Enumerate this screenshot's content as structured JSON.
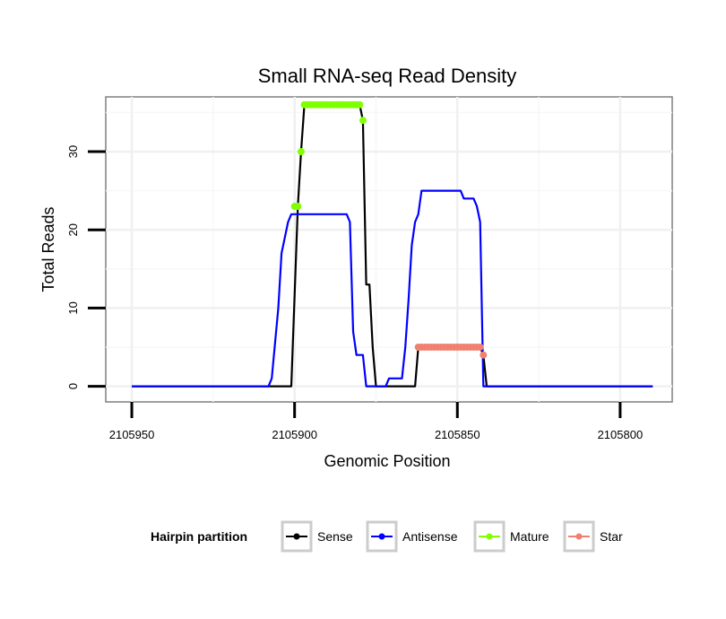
{
  "chart_data": {
    "type": "line",
    "title": "Small RNA-seq Read Density",
    "xlabel": "Genomic Position",
    "ylabel": "Total Reads",
    "x_reversed": true,
    "xlim": [
      2105958,
      2105784
    ],
    "ylim": [
      -2,
      37
    ],
    "xticks": [
      2105950,
      2105900,
      2105850,
      2105800
    ],
    "xtick_labels": [
      "2105950",
      "2105900",
      "2105850",
      "2105800"
    ],
    "yticks": [
      0,
      10,
      20,
      30
    ],
    "ytick_labels": [
      "0",
      "10",
      "20",
      "30"
    ],
    "grid": true,
    "legend": {
      "title": "Hairpin partition",
      "position": "bottom",
      "entries": [
        {
          "name": "Sense",
          "color": "#000000"
        },
        {
          "name": "Antisense",
          "color": "#0000ff"
        },
        {
          "name": "Mature",
          "color": "#7fff00"
        },
        {
          "name": "Star",
          "color": "#f08070"
        }
      ]
    },
    "series": [
      {
        "name": "Sense",
        "color": "#000000",
        "style": "line",
        "points": [
          [
            2105950,
            0
          ],
          [
            2105901,
            0
          ],
          [
            2105899,
            23
          ],
          [
            2105898,
            30
          ],
          [
            2105897,
            36
          ],
          [
            2105880,
            36
          ],
          [
            2105879,
            34
          ],
          [
            2105878,
            13
          ],
          [
            2105877,
            13
          ],
          [
            2105876,
            5
          ],
          [
            2105875,
            0
          ],
          [
            2105863,
            0
          ],
          [
            2105862,
            5
          ],
          [
            2105843,
            5
          ],
          [
            2105842,
            4
          ],
          [
            2105841,
            0
          ],
          [
            2105790,
            0
          ]
        ]
      },
      {
        "name": "Antisense",
        "color": "#0000ff",
        "style": "line",
        "points": [
          [
            2105950,
            0
          ],
          [
            2105908,
            0
          ],
          [
            2105907,
            1
          ],
          [
            2105905,
            10
          ],
          [
            2105904,
            17
          ],
          [
            2105902,
            21
          ],
          [
            2105901,
            22
          ],
          [
            2105884,
            22
          ],
          [
            2105883,
            21
          ],
          [
            2105882,
            7
          ],
          [
            2105881,
            4
          ],
          [
            2105879,
            4
          ],
          [
            2105878,
            0
          ],
          [
            2105872,
            0
          ],
          [
            2105871,
            1
          ],
          [
            2105867,
            1
          ],
          [
            2105866,
            5
          ],
          [
            2105865,
            11
          ],
          [
            2105864,
            18
          ],
          [
            2105863,
            21
          ],
          [
            2105862,
            22
          ],
          [
            2105861,
            25
          ],
          [
            2105849,
            25
          ],
          [
            2105848,
            24
          ],
          [
            2105845,
            24
          ],
          [
            2105844,
            23
          ],
          [
            2105843,
            21
          ],
          [
            2105842,
            0
          ],
          [
            2105790,
            0
          ]
        ]
      },
      {
        "name": "Mature",
        "color": "#7fff00",
        "style": "points",
        "points": [
          [
            2105900,
            23
          ],
          [
            2105899,
            23
          ],
          [
            2105898,
            30
          ],
          [
            2105897,
            36
          ],
          [
            2105896,
            36
          ],
          [
            2105895,
            36
          ],
          [
            2105894,
            36
          ],
          [
            2105893,
            36
          ],
          [
            2105892,
            36
          ],
          [
            2105891,
            36
          ],
          [
            2105890,
            36
          ],
          [
            2105889,
            36
          ],
          [
            2105888,
            36
          ],
          [
            2105887,
            36
          ],
          [
            2105886,
            36
          ],
          [
            2105885,
            36
          ],
          [
            2105884,
            36
          ],
          [
            2105883,
            36
          ],
          [
            2105882,
            36
          ],
          [
            2105881,
            36
          ],
          [
            2105880,
            36
          ],
          [
            2105879,
            34
          ]
        ]
      },
      {
        "name": "Star",
        "color": "#f08070",
        "style": "points",
        "points": [
          [
            2105862,
            5
          ],
          [
            2105861,
            5
          ],
          [
            2105860,
            5
          ],
          [
            2105859,
            5
          ],
          [
            2105858,
            5
          ],
          [
            2105857,
            5
          ],
          [
            2105856,
            5
          ],
          [
            2105855,
            5
          ],
          [
            2105854,
            5
          ],
          [
            2105853,
            5
          ],
          [
            2105852,
            5
          ],
          [
            2105851,
            5
          ],
          [
            2105850,
            5
          ],
          [
            2105849,
            5
          ],
          [
            2105848,
            5
          ],
          [
            2105847,
            5
          ],
          [
            2105846,
            5
          ],
          [
            2105845,
            5
          ],
          [
            2105844,
            5
          ],
          [
            2105843,
            5
          ],
          [
            2105842,
            4
          ]
        ]
      }
    ]
  }
}
